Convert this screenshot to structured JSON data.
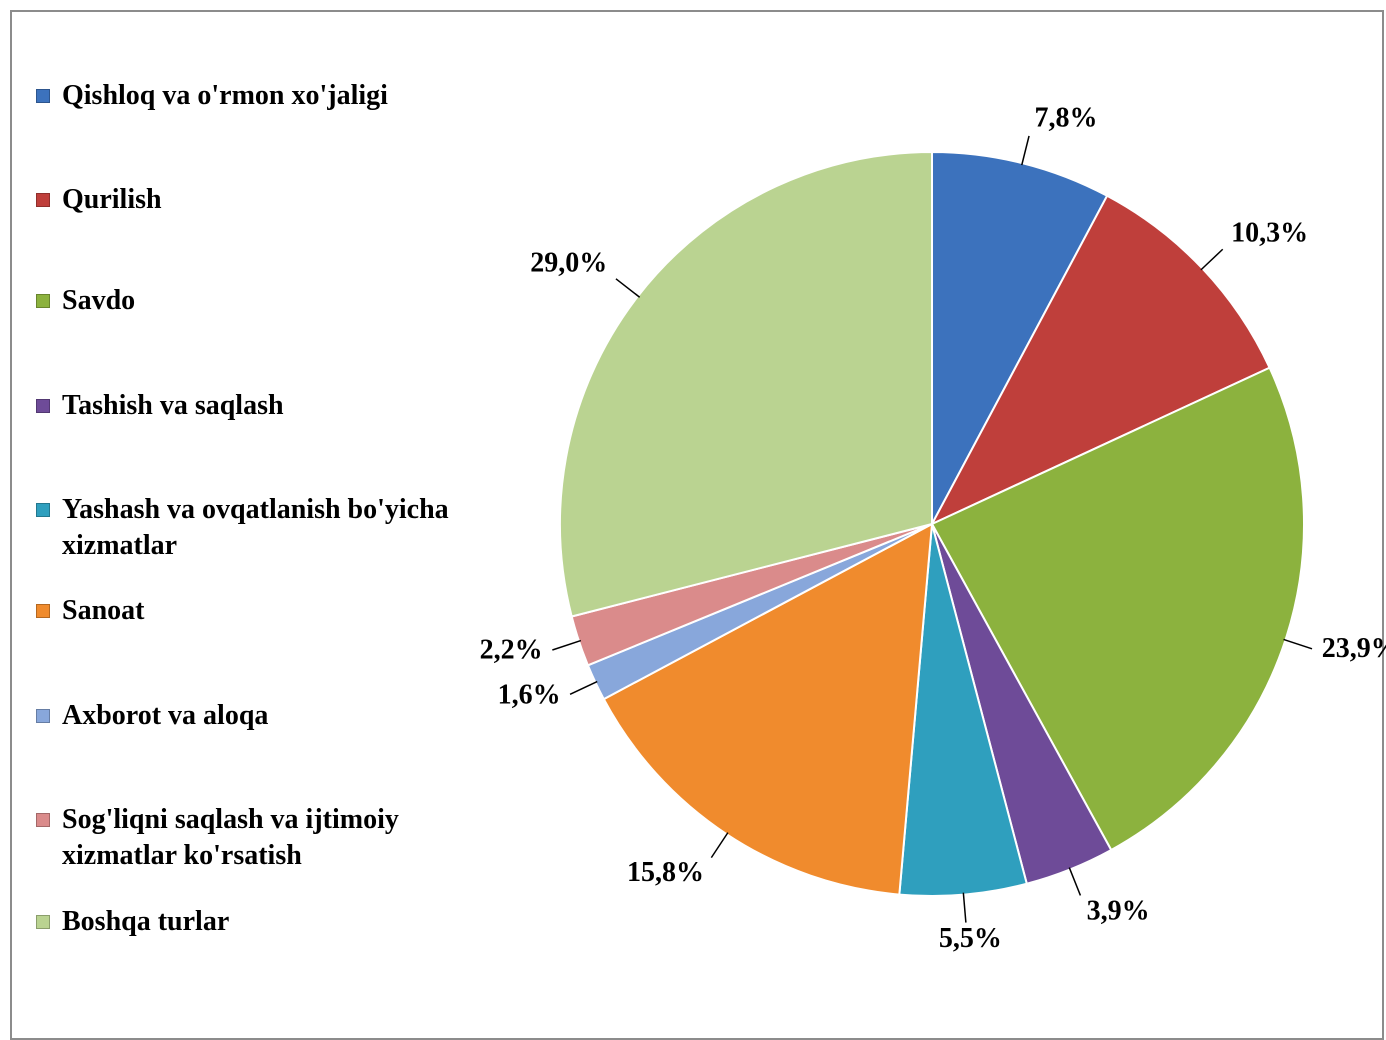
{
  "chart_data": {
    "type": "pie",
    "categories": [
      "Qishloq va o'rmon xo'jaligi",
      "Qurilish",
      "Savdo",
      "Tashish va saqlash",
      "Yashash va ovqatlanish bo'yicha xizmatlar",
      "Sanoat",
      "Axborot va aloqa",
      "Sog'liqni saqlash va ijtimoiy xizmatlar ko'rsatish",
      "Boshqa turlar"
    ],
    "values": [
      7.8,
      10.3,
      23.9,
      3.9,
      5.5,
      15.8,
      1.6,
      2.2,
      29.0
    ],
    "value_labels": [
      "7,8%",
      "10,3%",
      "23,9%",
      "3,9%",
      "5,5%",
      "15,8%",
      "1,6%",
      "2,2%",
      "29,0%"
    ],
    "colors": [
      "#3c72bd",
      "#bf3f3b",
      "#8cb23e",
      "#6e4b98",
      "#2f9fbe",
      "#f08b2d",
      "#88a7db",
      "#da8b8b",
      "#bad391"
    ],
    "legend": "left"
  }
}
